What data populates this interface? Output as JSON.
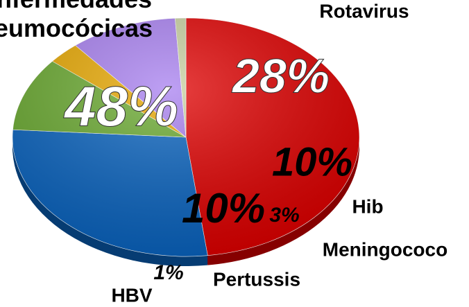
{
  "chart_data": {
    "type": "pie",
    "categories": [
      "Enfermedades neumocócicas",
      "Rotavirus",
      "Hib",
      "Meningococo",
      "Pertussis",
      "HBV"
    ],
    "values": [
      48,
      28,
      10,
      3,
      10,
      1
    ],
    "value_labels": [
      "48%",
      "28%",
      "10%",
      "3%",
      "10%",
      "1%"
    ],
    "colors": [
      "#e00000",
      "#0a64c0",
      "#6aaa30",
      "#e8a800",
      "#a880f0",
      "#c8d0a0"
    ]
  }
}
